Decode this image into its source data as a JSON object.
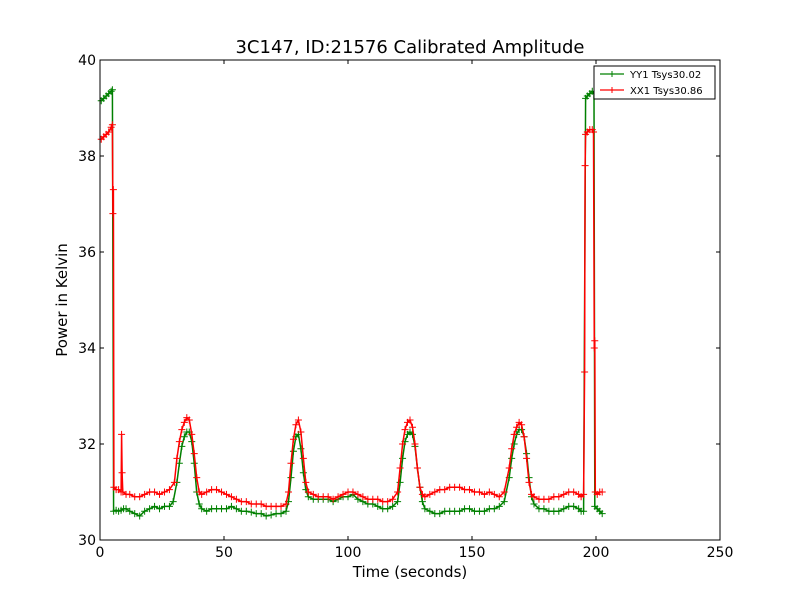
{
  "chart_data": {
    "type": "line",
    "title": "3C147, ID:21576 Calibrated Amplitude",
    "xlabel": "Time (seconds)",
    "ylabel": "Power in Kelvin",
    "xlim": [
      0,
      250
    ],
    "ylim": [
      30,
      40
    ],
    "xticks": [
      0,
      50,
      100,
      150,
      200,
      250
    ],
    "yticks": [
      30,
      32,
      34,
      36,
      38,
      40
    ],
    "grid": false,
    "legend_position": "top-right",
    "marker": "+",
    "series": [
      {
        "name": "YY1 Tsys30.02",
        "color": "#008000",
        "points": [
          [
            0.5,
            39.15
          ],
          [
            1.5,
            39.2
          ],
          [
            2.5,
            39.25
          ],
          [
            3.5,
            39.3
          ],
          [
            4.5,
            39.35
          ],
          [
            5.0,
            39.38
          ],
          [
            5.5,
            30.6
          ],
          [
            6.5,
            30.62
          ],
          [
            7.5,
            30.6
          ],
          [
            8.5,
            30.62
          ],
          [
            9.5,
            30.65
          ],
          [
            10.5,
            30.65
          ],
          [
            12,
            30.6
          ],
          [
            14,
            30.55
          ],
          [
            16,
            30.5
          ],
          [
            18,
            30.6
          ],
          [
            20,
            30.65
          ],
          [
            22,
            30.7
          ],
          [
            24,
            30.65
          ],
          [
            26,
            30.7
          ],
          [
            28,
            30.7
          ],
          [
            29.5,
            30.8
          ],
          [
            31,
            31.2
          ],
          [
            32,
            31.6
          ],
          [
            33,
            31.95
          ],
          [
            34,
            32.15
          ],
          [
            35,
            32.25
          ],
          [
            36,
            32.25
          ],
          [
            37,
            32.05
          ],
          [
            38,
            31.6
          ],
          [
            39,
            31.0
          ],
          [
            40,
            30.75
          ],
          [
            41,
            30.65
          ],
          [
            43,
            30.6
          ],
          [
            45,
            30.65
          ],
          [
            47,
            30.65
          ],
          [
            49,
            30.65
          ],
          [
            51,
            30.65
          ],
          [
            53,
            30.7
          ],
          [
            55,
            30.65
          ],
          [
            57,
            30.6
          ],
          [
            59,
            30.6
          ],
          [
            61,
            30.58
          ],
          [
            63,
            30.55
          ],
          [
            65,
            30.55
          ],
          [
            67,
            30.5
          ],
          [
            69,
            30.52
          ],
          [
            71,
            30.55
          ],
          [
            73,
            30.55
          ],
          [
            75,
            30.6
          ],
          [
            76,
            30.8
          ],
          [
            77,
            31.3
          ],
          [
            78,
            31.85
          ],
          [
            79,
            32.15
          ],
          [
            80,
            32.2
          ],
          [
            81,
            31.9
          ],
          [
            82,
            31.4
          ],
          [
            83,
            31.05
          ],
          [
            84,
            30.9
          ],
          [
            86,
            30.85
          ],
          [
            88,
            30.85
          ],
          [
            90,
            30.85
          ],
          [
            92,
            30.85
          ],
          [
            94,
            30.8
          ],
          [
            96,
            30.85
          ],
          [
            98,
            30.9
          ],
          [
            100,
            30.9
          ],
          [
            102,
            30.95
          ],
          [
            104,
            30.85
          ],
          [
            106,
            30.8
          ],
          [
            108,
            30.75
          ],
          [
            110,
            30.75
          ],
          [
            112,
            30.7
          ],
          [
            114,
            30.65
          ],
          [
            116,
            30.65
          ],
          [
            118,
            30.7
          ],
          [
            120,
            30.8
          ],
          [
            121,
            31.2
          ],
          [
            122,
            31.7
          ],
          [
            123,
            32.05
          ],
          [
            124,
            32.2
          ],
          [
            125,
            32.25
          ],
          [
            126,
            32.2
          ],
          [
            127,
            31.95
          ],
          [
            128,
            31.5
          ],
          [
            129,
            31.1
          ],
          [
            130,
            30.8
          ],
          [
            131,
            30.65
          ],
          [
            133,
            30.6
          ],
          [
            135,
            30.55
          ],
          [
            137,
            30.55
          ],
          [
            139,
            30.6
          ],
          [
            141,
            30.6
          ],
          [
            143,
            30.6
          ],
          [
            145,
            30.6
          ],
          [
            147,
            30.65
          ],
          [
            149,
            30.65
          ],
          [
            151,
            30.6
          ],
          [
            153,
            30.6
          ],
          [
            155,
            30.6
          ],
          [
            157,
            30.65
          ],
          [
            159,
            30.65
          ],
          [
            161,
            30.7
          ],
          [
            163,
            30.8
          ],
          [
            165,
            31.3
          ],
          [
            166,
            31.7
          ],
          [
            167,
            32.0
          ],
          [
            168,
            32.2
          ],
          [
            169,
            32.3
          ],
          [
            170,
            32.3
          ],
          [
            171,
            32.15
          ],
          [
            172,
            31.8
          ],
          [
            173,
            31.3
          ],
          [
            174,
            30.9
          ],
          [
            175,
            30.75
          ],
          [
            177,
            30.65
          ],
          [
            179,
            30.65
          ],
          [
            181,
            30.6
          ],
          [
            183,
            30.6
          ],
          [
            185,
            30.6
          ],
          [
            187,
            30.65
          ],
          [
            189,
            30.7
          ],
          [
            191,
            30.7
          ],
          [
            193,
            30.65
          ],
          [
            194,
            30.6
          ],
          [
            195,
            30.6
          ],
          [
            195.8,
            39.2
          ],
          [
            196.5,
            39.25
          ],
          [
            197.5,
            39.3
          ],
          [
            198.5,
            39.35
          ],
          [
            199.2,
            39.3
          ],
          [
            199.5,
            30.7
          ],
          [
            200.5,
            30.65
          ],
          [
            201.5,
            30.6
          ],
          [
            202.5,
            30.55
          ]
        ]
      },
      {
        "name": "XX1 Tsys30.86",
        "color": "#ff0000",
        "points": [
          [
            0.5,
            38.35
          ],
          [
            1.5,
            38.4
          ],
          [
            2.5,
            38.45
          ],
          [
            3.5,
            38.5
          ],
          [
            4.5,
            38.6
          ],
          [
            5.0,
            38.65
          ],
          [
            5.2,
            36.8
          ],
          [
            5.4,
            37.3
          ],
          [
            5.6,
            31.1
          ],
          [
            6.5,
            31.05
          ],
          [
            7.5,
            31.05
          ],
          [
            8.5,
            31.0
          ],
          [
            8.7,
            32.2
          ],
          [
            8.9,
            31.4
          ],
          [
            9.2,
            31.0
          ],
          [
            10.5,
            30.95
          ],
          [
            12,
            30.95
          ],
          [
            14,
            30.9
          ],
          [
            16,
            30.9
          ],
          [
            18,
            30.95
          ],
          [
            20,
            31.0
          ],
          [
            22,
            31.0
          ],
          [
            24,
            30.95
          ],
          [
            26,
            31.0
          ],
          [
            28,
            31.05
          ],
          [
            30,
            31.2
          ],
          [
            31,
            31.7
          ],
          [
            32,
            32.05
          ],
          [
            33,
            32.3
          ],
          [
            34,
            32.45
          ],
          [
            35,
            32.55
          ],
          [
            36,
            32.5
          ],
          [
            37,
            32.2
          ],
          [
            38,
            31.8
          ],
          [
            39,
            31.3
          ],
          [
            40,
            31.0
          ],
          [
            41,
            30.95
          ],
          [
            43,
            31.0
          ],
          [
            45,
            31.05
          ],
          [
            47,
            31.05
          ],
          [
            49,
            31.0
          ],
          [
            51,
            30.95
          ],
          [
            53,
            30.9
          ],
          [
            55,
            30.85
          ],
          [
            57,
            30.8
          ],
          [
            59,
            30.8
          ],
          [
            61,
            30.75
          ],
          [
            63,
            30.75
          ],
          [
            65,
            30.75
          ],
          [
            67,
            30.7
          ],
          [
            69,
            30.7
          ],
          [
            71,
            30.7
          ],
          [
            73,
            30.7
          ],
          [
            75,
            30.75
          ],
          [
            76,
            31.0
          ],
          [
            77,
            31.6
          ],
          [
            78,
            32.1
          ],
          [
            79,
            32.4
          ],
          [
            80,
            32.5
          ],
          [
            81,
            32.25
          ],
          [
            82,
            31.7
          ],
          [
            83,
            31.2
          ],
          [
            84,
            31.0
          ],
          [
            86,
            30.95
          ],
          [
            88,
            30.9
          ],
          [
            90,
            30.9
          ],
          [
            92,
            30.9
          ],
          [
            94,
            30.85
          ],
          [
            96,
            30.9
          ],
          [
            98,
            30.95
          ],
          [
            100,
            31.0
          ],
          [
            102,
            31.0
          ],
          [
            104,
            30.95
          ],
          [
            106,
            30.9
          ],
          [
            108,
            30.85
          ],
          [
            110,
            30.85
          ],
          [
            112,
            30.85
          ],
          [
            114,
            30.8
          ],
          [
            116,
            30.8
          ],
          [
            118,
            30.85
          ],
          [
            120,
            31.0
          ],
          [
            121,
            31.5
          ],
          [
            122,
            32.0
          ],
          [
            123,
            32.3
          ],
          [
            124,
            32.45
          ],
          [
            125,
            32.5
          ],
          [
            126,
            32.35
          ],
          [
            127,
            32.0
          ],
          [
            128,
            31.5
          ],
          [
            129,
            31.1
          ],
          [
            130,
            30.95
          ],
          [
            131,
            30.9
          ],
          [
            133,
            30.95
          ],
          [
            135,
            31.0
          ],
          [
            137,
            31.05
          ],
          [
            139,
            31.05
          ],
          [
            141,
            31.1
          ],
          [
            143,
            31.1
          ],
          [
            145,
            31.1
          ],
          [
            147,
            31.05
          ],
          [
            149,
            31.05
          ],
          [
            151,
            31.0
          ],
          [
            153,
            31.0
          ],
          [
            155,
            30.95
          ],
          [
            157,
            31.0
          ],
          [
            159,
            30.95
          ],
          [
            161,
            30.9
          ],
          [
            163,
            31.0
          ],
          [
            165,
            31.5
          ],
          [
            166,
            31.9
          ],
          [
            167,
            32.2
          ],
          [
            168,
            32.35
          ],
          [
            169,
            32.45
          ],
          [
            170,
            32.4
          ],
          [
            171,
            32.15
          ],
          [
            172,
            31.7
          ],
          [
            173,
            31.2
          ],
          [
            174,
            30.95
          ],
          [
            175,
            30.9
          ],
          [
            177,
            30.85
          ],
          [
            179,
            30.85
          ],
          [
            181,
            30.85
          ],
          [
            183,
            30.9
          ],
          [
            185,
            30.9
          ],
          [
            187,
            30.95
          ],
          [
            189,
            31.0
          ],
          [
            191,
            31.0
          ],
          [
            193,
            30.95
          ],
          [
            194,
            30.9
          ],
          [
            195,
            30.95
          ],
          [
            195.4,
            33.5
          ],
          [
            195.6,
            37.8
          ],
          [
            195.8,
            38.45
          ],
          [
            196.5,
            38.5
          ],
          [
            197.5,
            38.55
          ],
          [
            198.5,
            38.55
          ],
          [
            199.0,
            38.5
          ],
          [
            199.3,
            34.0
          ],
          [
            199.5,
            34.15
          ],
          [
            199.7,
            31.0
          ],
          [
            200.5,
            30.95
          ],
          [
            201.5,
            31.0
          ],
          [
            202.5,
            31.0
          ]
        ]
      }
    ]
  }
}
